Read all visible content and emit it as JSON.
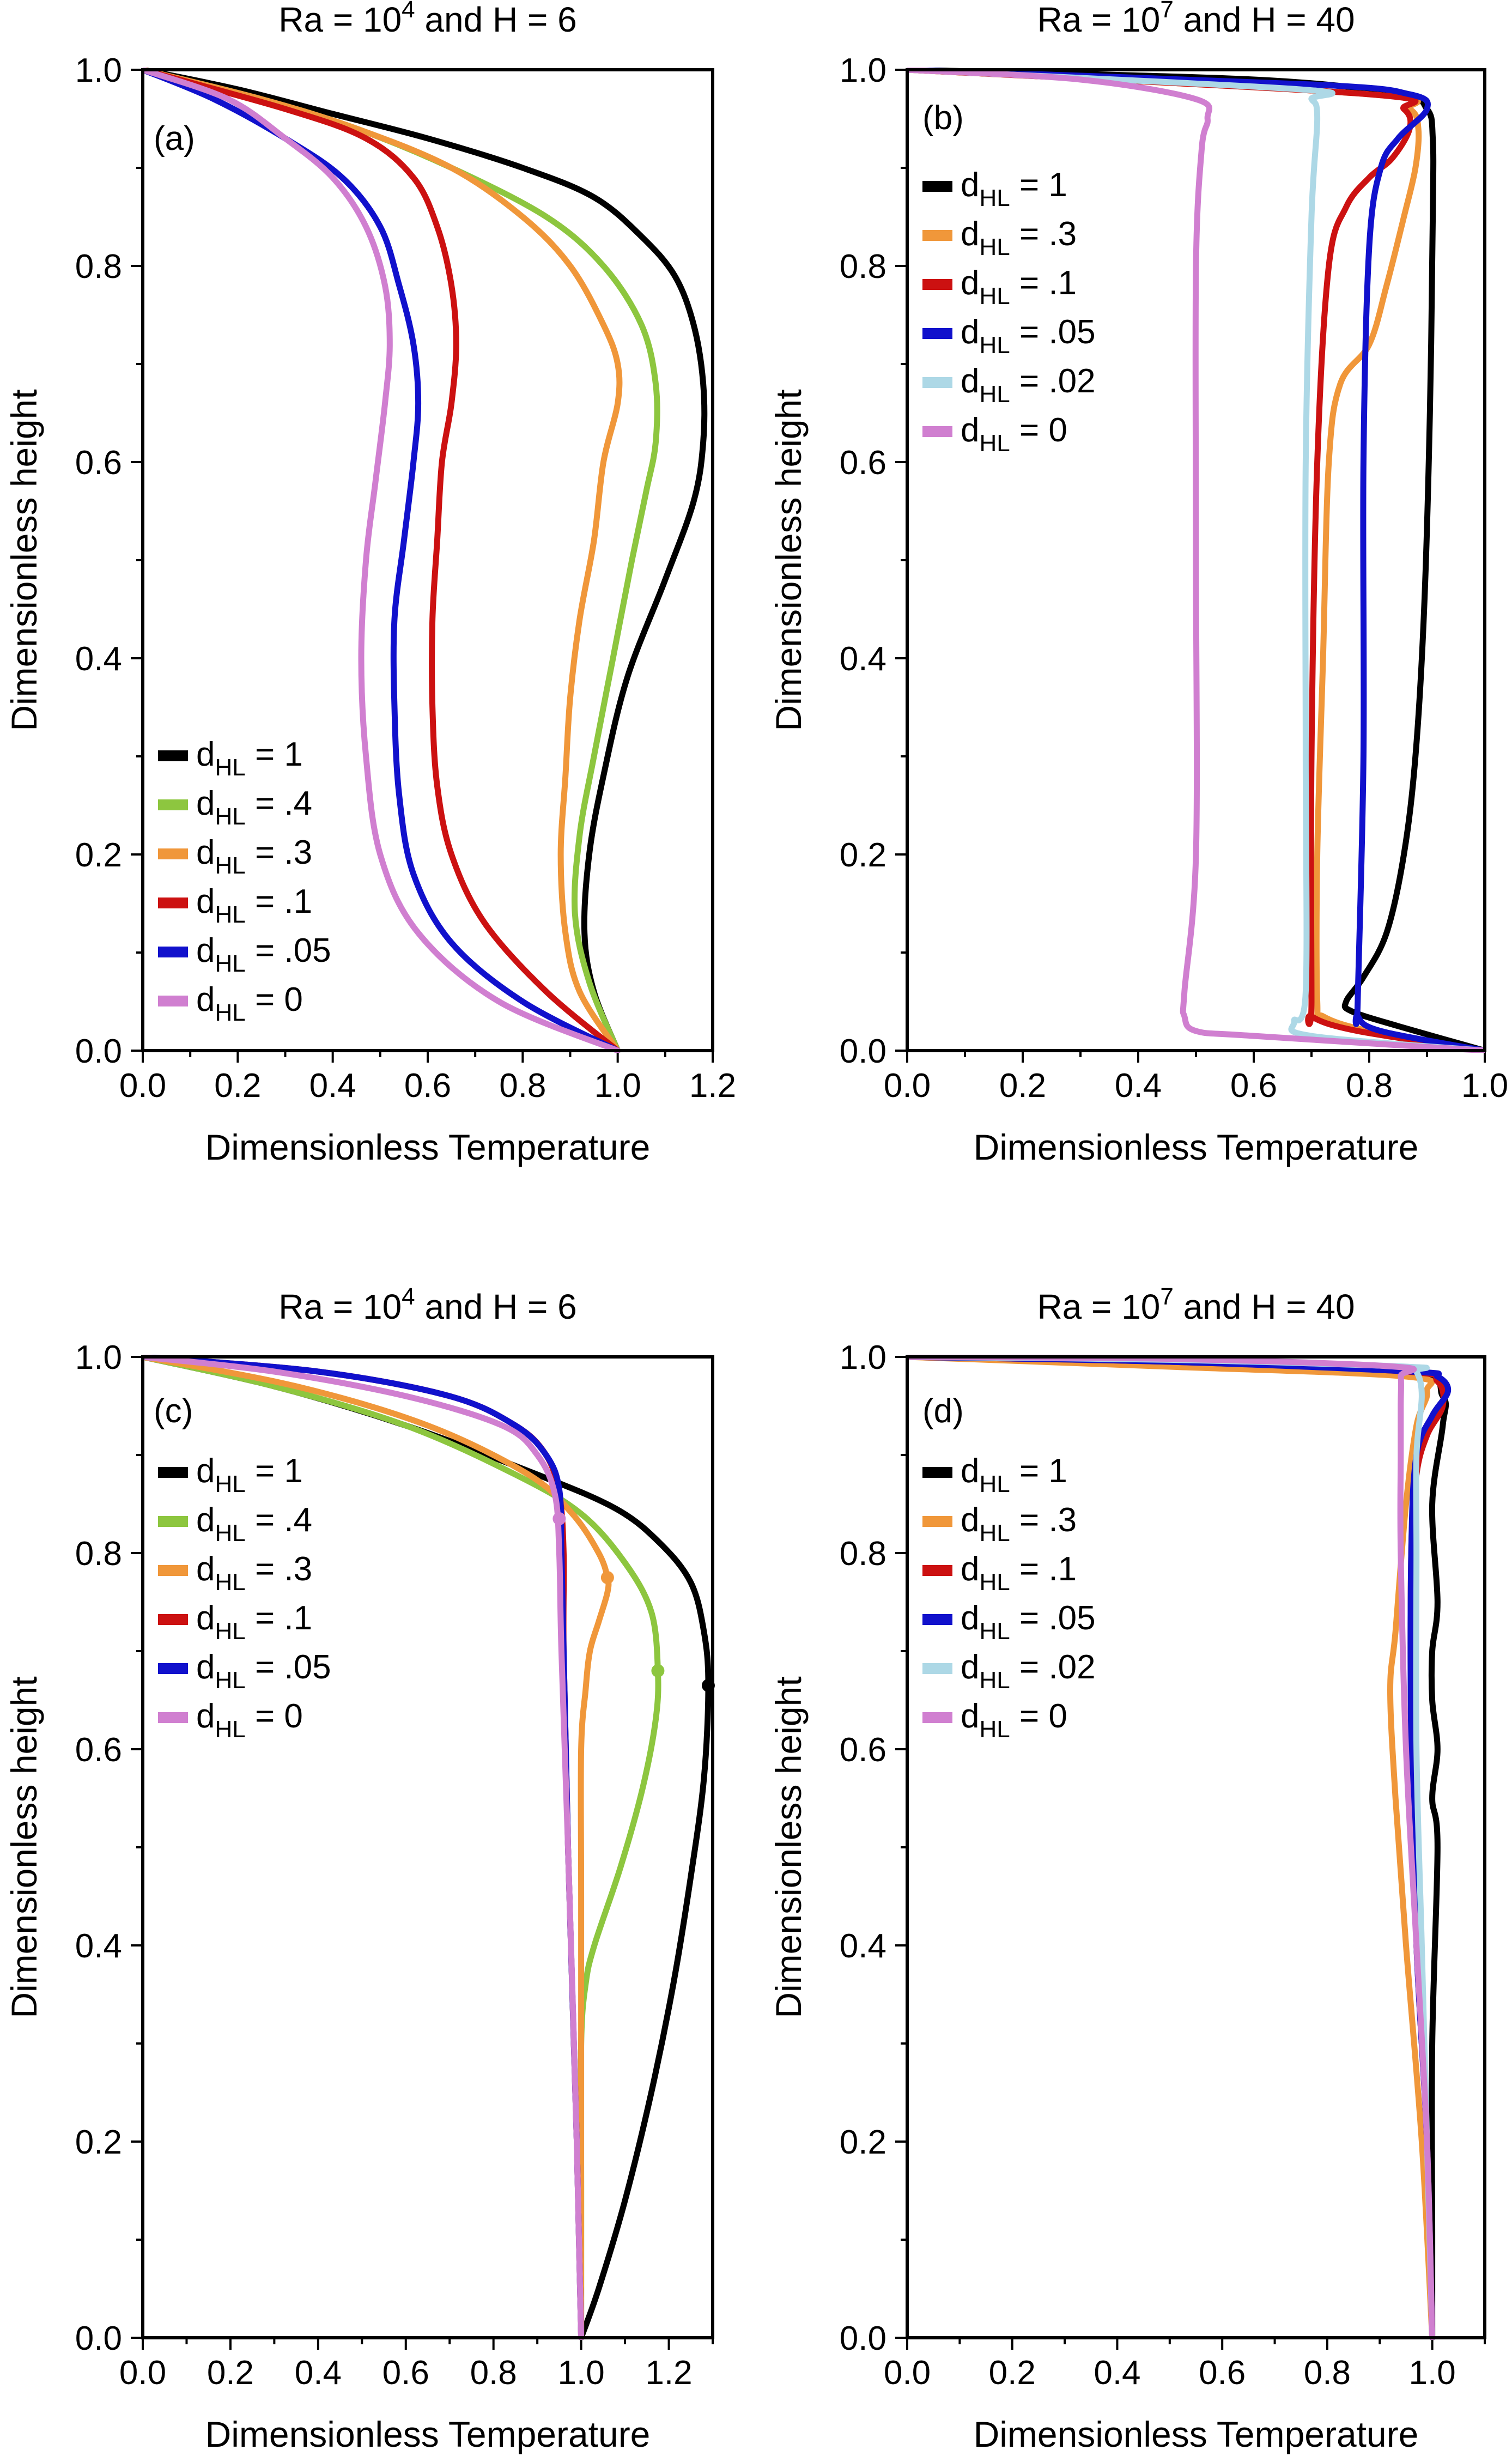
{
  "chart_data": [
    {
      "panel": "(a)",
      "type": "line",
      "title": "Ra = 10^4 and H = 6",
      "title_parts": [
        "Ra = 10",
        "4",
        " and H = 6"
      ],
      "xlabel": "Dimensionless Temperature",
      "ylabel": "Dimensionless height",
      "xlim": [
        0,
        1.2
      ],
      "ylim": [
        0,
        1
      ],
      "xticks": [
        "0.0",
        "0.2",
        "0.4",
        "0.6",
        "0.8",
        "1.0",
        "1.2"
      ],
      "yticks": [
        "0.0",
        "0.2",
        "0.4",
        "0.6",
        "0.8",
        "1.0"
      ],
      "legend_placement": "lower-left",
      "series": [
        {
          "name_main": "d",
          "name_sub": "HL",
          "name_rest": " = 1",
          "color": "#000000",
          "x": [
            1.0,
            0.95,
            0.93,
            0.94,
            0.97,
            1.02,
            1.1,
            1.16,
            1.18,
            1.18,
            1.16,
            1.12,
            1.05,
            0.95,
            0.8,
            0.6,
            0.4,
            0.2,
            0.0
          ],
          "y": [
            0.0,
            0.06,
            0.12,
            0.2,
            0.28,
            0.38,
            0.48,
            0.56,
            0.62,
            0.68,
            0.74,
            0.79,
            0.83,
            0.87,
            0.9,
            0.93,
            0.955,
            0.98,
            1.0
          ]
        },
        {
          "name_main": "d",
          "name_sub": "HL",
          "name_rest": " = .4",
          "color": "#8dc63f",
          "x": [
            1.0,
            0.94,
            0.91,
            0.92,
            0.95,
            0.99,
            1.03,
            1.06,
            1.08,
            1.08,
            1.05,
            0.97,
            0.85,
            0.65,
            0.45,
            0.25,
            0.0
          ],
          "y": [
            0.0,
            0.07,
            0.14,
            0.22,
            0.3,
            0.4,
            0.5,
            0.57,
            0.62,
            0.68,
            0.74,
            0.8,
            0.85,
            0.9,
            0.94,
            0.97,
            1.0
          ]
        },
        {
          "name_main": "d",
          "name_sub": "HL",
          "name_rest": " = .3",
          "color": "#f0973a",
          "x": [
            1.0,
            0.92,
            0.89,
            0.88,
            0.89,
            0.9,
            0.92,
            0.95,
            0.97,
            1.0,
            1.0,
            0.97,
            0.9,
            0.8,
            0.65,
            0.45,
            0.25,
            0.0
          ],
          "y": [
            0.0,
            0.06,
            0.12,
            0.2,
            0.28,
            0.36,
            0.44,
            0.52,
            0.6,
            0.66,
            0.7,
            0.74,
            0.8,
            0.85,
            0.9,
            0.94,
            0.97,
            1.0
          ]
        },
        {
          "name_main": "d",
          "name_sub": "HL",
          "name_rest": " = .1",
          "color": "#cc1111",
          "x": [
            1.0,
            0.85,
            0.72,
            0.65,
            0.62,
            0.61,
            0.61,
            0.62,
            0.63,
            0.65,
            0.66,
            0.65,
            0.62,
            0.57,
            0.47,
            0.3,
            0.0
          ],
          "y": [
            0.0,
            0.06,
            0.13,
            0.2,
            0.27,
            0.35,
            0.44,
            0.52,
            0.6,
            0.66,
            0.72,
            0.78,
            0.84,
            0.89,
            0.93,
            0.96,
            1.0
          ]
        },
        {
          "name_main": "d",
          "name_sub": "HL",
          "name_rest": " = .05",
          "color": "#1111cc",
          "x": [
            1.0,
            0.8,
            0.65,
            0.57,
            0.54,
            0.53,
            0.53,
            0.55,
            0.57,
            0.58,
            0.57,
            0.54,
            0.5,
            0.42,
            0.3,
            0.15,
            0.0
          ],
          "y": [
            0.0,
            0.05,
            0.11,
            0.18,
            0.26,
            0.35,
            0.44,
            0.52,
            0.6,
            0.66,
            0.72,
            0.78,
            0.84,
            0.89,
            0.93,
            0.97,
            1.0
          ]
        },
        {
          "name_main": "d",
          "name_sub": "HL",
          "name_rest": " = 0",
          "color": "#d07fd0",
          "x": [
            1.0,
            0.75,
            0.58,
            0.5,
            0.47,
            0.46,
            0.47,
            0.49,
            0.51,
            0.52,
            0.51,
            0.47,
            0.4,
            0.3,
            0.18,
            0.0
          ],
          "y": [
            0.0,
            0.05,
            0.12,
            0.2,
            0.3,
            0.4,
            0.5,
            0.58,
            0.66,
            0.72,
            0.78,
            0.84,
            0.89,
            0.93,
            0.97,
            1.0
          ]
        }
      ]
    },
    {
      "panel": "(b)",
      "type": "line",
      "title": "Ra = 10^7 and H = 40",
      "title_parts": [
        "Ra = 10",
        "7",
        " and H = 40"
      ],
      "xlabel": "Dimensionless Temperature",
      "ylabel": "Dimensionless height",
      "xlim": [
        0,
        1
      ],
      "ylim": [
        0,
        1
      ],
      "xticks": [
        "0.0",
        "0.2",
        "0.4",
        "0.6",
        "0.8",
        "1.0"
      ],
      "yticks": [
        "0.0",
        "0.2",
        "0.4",
        "0.6",
        "0.8",
        "1.0"
      ],
      "legend_placement": "upper-left",
      "series": [
        {
          "name_main": "d",
          "name_sub": "HL",
          "name_rest": " = 1",
          "color": "#000000",
          "x": [
            1.0,
            0.85,
            0.77,
            0.76,
            0.79,
            0.83,
            0.86,
            0.88,
            0.895,
            0.905,
            0.91,
            0.91,
            0.9,
            0.85,
            0.6,
            0.0
          ],
          "y": [
            0.0,
            0.025,
            0.04,
            0.05,
            0.075,
            0.12,
            0.2,
            0.3,
            0.45,
            0.65,
            0.85,
            0.93,
            0.96,
            0.975,
            0.99,
            1.0
          ]
        },
        {
          "name_main": "d",
          "name_sub": "HL",
          "name_rest": " = .3",
          "color": "#f0973a",
          "x": [
            1.0,
            0.8,
            0.72,
            0.71,
            0.71,
            0.72,
            0.73,
            0.75,
            0.8,
            0.83,
            0.86,
            0.88,
            0.885,
            0.87,
            0.8,
            0.0
          ],
          "y": [
            0.0,
            0.02,
            0.035,
            0.05,
            0.2,
            0.4,
            0.6,
            0.68,
            0.72,
            0.78,
            0.85,
            0.9,
            0.94,
            0.96,
            0.975,
            1.0
          ]
        },
        {
          "name_main": "d",
          "name_sub": "HL",
          "name_rest": " = .1",
          "color": "#cc1111",
          "x": [
            1.0,
            0.78,
            0.7,
            0.7,
            0.7,
            0.71,
            0.73,
            0.76,
            0.8,
            0.84,
            0.87,
            0.86,
            0.8,
            0.0
          ],
          "y": [
            0.0,
            0.02,
            0.035,
            0.05,
            0.3,
            0.6,
            0.8,
            0.86,
            0.89,
            0.91,
            0.94,
            0.96,
            0.975,
            1.0
          ]
        },
        {
          "name_main": "d",
          "name_sub": "HL",
          "name_rest": " = .05",
          "color": "#1111cc",
          "x": [
            1.0,
            0.82,
            0.78,
            0.78,
            0.79,
            0.79,
            0.8,
            0.82,
            0.85,
            0.9,
            0.87,
            0.7,
            0.0
          ],
          "y": [
            0.0,
            0.02,
            0.035,
            0.05,
            0.3,
            0.6,
            0.82,
            0.9,
            0.93,
            0.96,
            0.975,
            0.985,
            1.0
          ]
        },
        {
          "name_main": "d",
          "name_sub": "HL",
          "name_rest": " = .02",
          "color": "#add8e6",
          "x": [
            1.0,
            0.7,
            0.67,
            0.69,
            0.69,
            0.69,
            0.7,
            0.71,
            0.7,
            0.68,
            0.0
          ],
          "y": [
            0.0,
            0.015,
            0.03,
            0.06,
            0.3,
            0.6,
            0.85,
            0.95,
            0.97,
            0.98,
            1.0
          ]
        },
        {
          "name_main": "d",
          "name_sub": "HL",
          "name_rest": " = 0",
          "color": "#d07fd0",
          "x": [
            1.0,
            0.6,
            0.5,
            0.48,
            0.48,
            0.5,
            0.5,
            0.5,
            0.51,
            0.52,
            0.5,
            0.3,
            0.0
          ],
          "y": [
            0.0,
            0.015,
            0.02,
            0.035,
            0.06,
            0.2,
            0.5,
            0.8,
            0.92,
            0.95,
            0.97,
            0.99,
            1.0
          ]
        }
      ]
    },
    {
      "panel": "(c)",
      "type": "line",
      "title": "Ra = 10^4 and H = 6",
      "title_parts": [
        "Ra = 10",
        "4",
        " and H = 6"
      ],
      "xlabel": "Dimensionless Temperature",
      "ylabel": "Dimensionless height",
      "xlim": [
        0,
        1.3
      ],
      "ylim": [
        0,
        1
      ],
      "xticks": [
        "0.0",
        "0.2",
        "0.4",
        "0.6",
        "0.8",
        "1.0",
        "1.2"
      ],
      "yticks": [
        "0.0",
        "0.2",
        "0.4",
        "0.6",
        "0.8",
        "1.0"
      ],
      "legend_placement": "upper-left",
      "series": [
        {
          "name_main": "d",
          "name_sub": "HL",
          "name_rest": " = 1",
          "color": "#000000",
          "x": [
            1.0,
            1.04,
            1.1,
            1.16,
            1.21,
            1.25,
            1.28,
            1.29,
            1.28,
            1.25,
            1.18,
            1.08,
            0.9,
            0.6,
            0.3,
            0.0
          ],
          "y": [
            0.0,
            0.05,
            0.14,
            0.25,
            0.36,
            0.47,
            0.57,
            0.665,
            0.72,
            0.77,
            0.81,
            0.845,
            0.88,
            0.93,
            0.97,
            1.0
          ]
        },
        {
          "name_main": "d",
          "name_sub": "HL",
          "name_rest": " = .4",
          "color": "#8dc63f",
          "x": [
            1.0,
            1.0,
            1.0,
            1.01,
            1.03,
            1.09,
            1.14,
            1.17,
            1.175,
            1.16,
            1.1,
            1.0,
            0.85,
            0.6,
            0.3,
            0.0
          ],
          "y": [
            0.0,
            0.15,
            0.3,
            0.36,
            0.4,
            0.48,
            0.56,
            0.63,
            0.68,
            0.74,
            0.79,
            0.84,
            0.88,
            0.93,
            0.97,
            1.0
          ]
        },
        {
          "name_main": "d",
          "name_sub": "HL",
          "name_rest": " = .3",
          "color": "#f0973a",
          "x": [
            1.0,
            1.0,
            1.0,
            1.0,
            1.01,
            1.02,
            1.04,
            1.06,
            1.06,
            1.04,
            0.98,
            0.88,
            0.65,
            0.35,
            0.0
          ],
          "y": [
            0.0,
            0.2,
            0.45,
            0.6,
            0.66,
            0.7,
            0.73,
            0.76,
            0.775,
            0.8,
            0.84,
            0.88,
            0.93,
            0.97,
            1.0
          ]
        },
        {
          "name_main": "d",
          "name_sub": "HL",
          "name_rest": " = .1",
          "color": "#cc1111",
          "x": [
            1.0,
            0.99,
            0.97,
            0.96,
            0.96,
            0.95,
            0.92,
            0.85,
            0.7,
            0.4,
            0.0
          ],
          "y": [
            0.0,
            0.2,
            0.5,
            0.7,
            0.8,
            0.86,
            0.9,
            0.93,
            0.96,
            0.985,
            1.0
          ]
        },
        {
          "name_main": "d",
          "name_sub": "HL",
          "name_rest": " = .05",
          "color": "#1111cc",
          "x": [
            1.0,
            0.99,
            0.97,
            0.96,
            0.955,
            0.95,
            0.92,
            0.85,
            0.7,
            0.4,
            0.0
          ],
          "y": [
            0.0,
            0.2,
            0.5,
            0.7,
            0.8,
            0.865,
            0.9,
            0.93,
            0.96,
            0.985,
            1.0
          ]
        },
        {
          "name_main": "d",
          "name_sub": "HL",
          "name_rest": " = 0",
          "color": "#d07fd0",
          "x": [
            1.0,
            0.99,
            0.97,
            0.955,
            0.95,
            0.94,
            0.9,
            0.82,
            0.6,
            0.3,
            0.0
          ],
          "y": [
            0.0,
            0.2,
            0.5,
            0.7,
            0.8,
            0.86,
            0.9,
            0.93,
            0.96,
            0.985,
            1.0
          ]
        }
      ],
      "markers": [
        {
          "x": 1.29,
          "y": 0.665,
          "color": "#000000"
        },
        {
          "x": 1.175,
          "y": 0.68,
          "color": "#8dc63f"
        },
        {
          "x": 1.06,
          "y": 0.775,
          "color": "#f0973a"
        },
        {
          "x": 0.95,
          "y": 0.835,
          "color": "#d07fd0"
        }
      ]
    },
    {
      "panel": "(d)",
      "type": "line",
      "title": "Ra = 10^7 and H = 40",
      "title_parts": [
        "Ra = 10",
        "7",
        " and H = 40"
      ],
      "xlabel": "Dimensionless Temperature",
      "ylabel": "Dimensionless height",
      "xlim": [
        0,
        1.1
      ],
      "ylim": [
        0,
        1
      ],
      "xticks": [
        "0.0",
        "0.2",
        "0.4",
        "0.6",
        "0.8",
        "1.0"
      ],
      "yticks": [
        "0.0",
        "0.2",
        "0.4",
        "0.6",
        "0.8",
        "1.0"
      ],
      "legend_placement": "upper-left",
      "series": [
        {
          "name_main": "d",
          "name_sub": "HL",
          "name_rest": " = 1",
          "color": "#000000",
          "x": [
            1.0,
            1.0,
            1.0,
            1.01,
            1.0,
            1.01,
            1.0,
            1.0,
            1.01,
            1.0,
            1.02,
            1.02,
            0.95,
            0.5,
            0.0
          ],
          "y": [
            0.0,
            0.1,
            0.3,
            0.5,
            0.55,
            0.6,
            0.65,
            0.7,
            0.75,
            0.85,
            0.93,
            0.96,
            0.985,
            0.995,
            1.0
          ]
        },
        {
          "name_main": "d",
          "name_sub": "HL",
          "name_rest": " = .3",
          "color": "#f0973a",
          "x": [
            1.0,
            0.98,
            0.95,
            0.93,
            0.92,
            0.93,
            0.95,
            0.97,
            0.99,
            0.95,
            0.5,
            0.0
          ],
          "y": [
            0.0,
            0.2,
            0.4,
            0.55,
            0.66,
            0.72,
            0.85,
            0.93,
            0.965,
            0.98,
            0.99,
            1.0
          ]
        },
        {
          "name_main": "d",
          "name_sub": "HL",
          "name_rest": " = .1",
          "color": "#cc1111",
          "x": [
            1.0,
            0.99,
            0.97,
            0.96,
            0.96,
            0.97,
            0.99,
            1.02,
            1.01,
            0.95,
            0.5,
            0.0
          ],
          "y": [
            0.0,
            0.2,
            0.4,
            0.6,
            0.8,
            0.88,
            0.92,
            0.95,
            0.975,
            0.985,
            0.995,
            1.0
          ]
        },
        {
          "name_main": "d",
          "name_sub": "HL",
          "name_rest": " = .05",
          "color": "#1111cc",
          "x": [
            1.0,
            0.99,
            0.97,
            0.96,
            0.96,
            0.97,
            1.0,
            1.03,
            1.01,
            0.96,
            0.5,
            0.0
          ],
          "y": [
            0.0,
            0.2,
            0.4,
            0.6,
            0.8,
            0.9,
            0.94,
            0.965,
            0.98,
            0.985,
            0.995,
            1.0
          ]
        },
        {
          "name_main": "d",
          "name_sub": "HL",
          "name_rest": " = .02",
          "color": "#add8e6",
          "x": [
            1.0,
            0.99,
            0.98,
            0.97,
            0.97,
            0.97,
            0.98,
            0.97,
            0.95,
            0.5,
            0.0
          ],
          "y": [
            0.0,
            0.2,
            0.4,
            0.6,
            0.8,
            0.9,
            0.96,
            0.985,
            0.99,
            0.997,
            1.0
          ]
        },
        {
          "name_main": "d",
          "name_sub": "HL",
          "name_rest": " = 0",
          "color": "#d07fd0",
          "x": [
            1.0,
            0.99,
            0.97,
            0.95,
            0.94,
            0.94,
            0.94,
            0.94,
            0.93,
            0.5,
            0.0
          ],
          "y": [
            0.0,
            0.2,
            0.4,
            0.6,
            0.8,
            0.9,
            0.95,
            0.98,
            0.99,
            0.998,
            1.0
          ]
        }
      ]
    }
  ]
}
